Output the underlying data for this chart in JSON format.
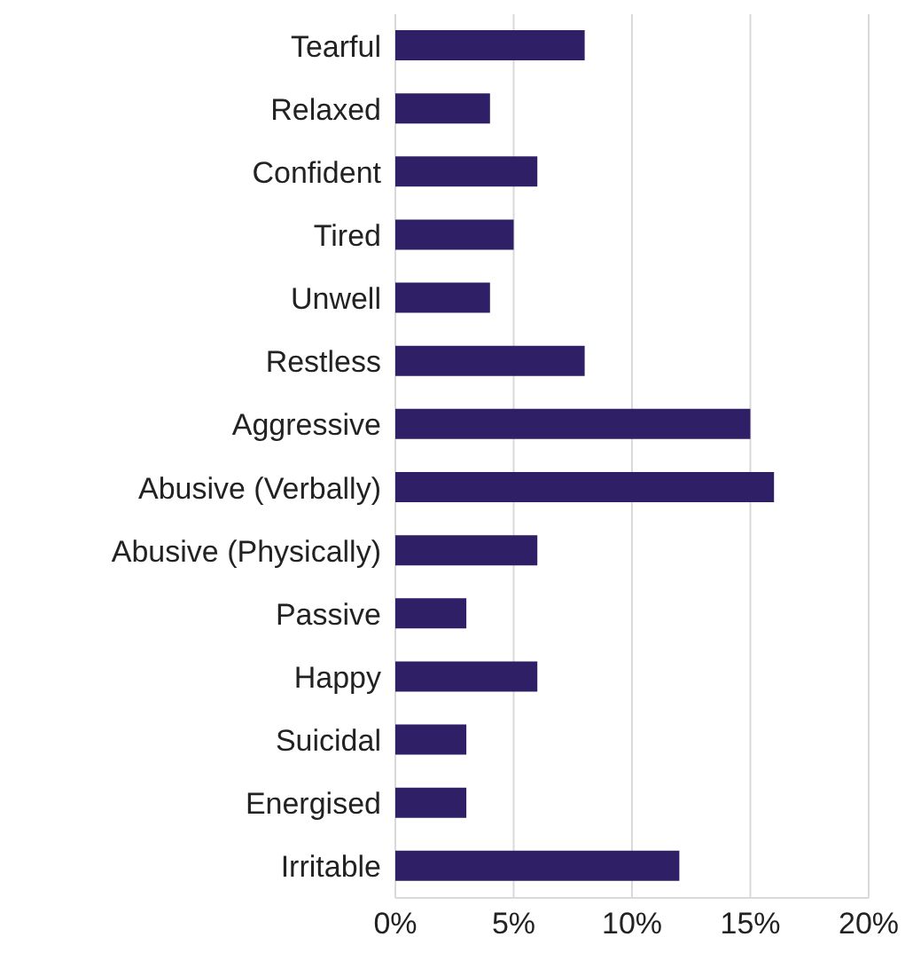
{
  "chart_data": {
    "type": "bar",
    "orientation": "horizontal",
    "categories": [
      "Tearful",
      "Relaxed",
      "Confident",
      "Tired",
      "Unwell",
      "Restless",
      "Aggressive",
      "Abusive (Verbally)",
      "Abusive (Physically)",
      "Passive",
      "Happy",
      "Suicidal",
      "Energised",
      "Irritable"
    ],
    "values": [
      8,
      4,
      6,
      5,
      4,
      8,
      15,
      16,
      6,
      3,
      6,
      3,
      3,
      12
    ],
    "color": "#2e1f66",
    "xlim": [
      0,
      20
    ],
    "xticks": [
      {
        "value": 0,
        "label": "0%"
      },
      {
        "value": 5,
        "label": "5%"
      },
      {
        "value": 10,
        "label": "10%"
      },
      {
        "value": 15,
        "label": "15%"
      },
      {
        "value": 20,
        "label": "20%"
      }
    ],
    "grid": "x"
  }
}
